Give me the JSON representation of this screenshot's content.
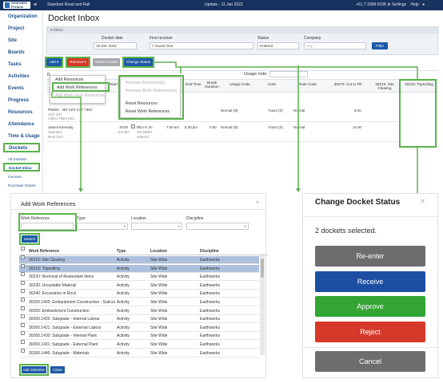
{
  "topbar": {
    "logo": "SYNCHRO Perform",
    "account": "Standard Road and Rail",
    "update": "Update - 11 Jan 2022",
    "phone": "+61 7 3368 0038",
    "settings": "Settings",
    "help": "Help"
  },
  "sidebar": {
    "items": [
      "Organization",
      "Project",
      "Site",
      "Boards",
      "Tasks",
      "Activities",
      "Events",
      "Progress",
      "Resources",
      "Attendance",
      "Time & Usage",
      "Dockets"
    ],
    "subitems": [
      "All Dockets",
      "Docket Inbox",
      "Invoices",
      "Purchase Orders"
    ]
  },
  "page": {
    "title": "Docket Inbox"
  },
  "filters": {
    "header": "Filters",
    "docket_date_label": "Docket date",
    "docket_date": "15 Dec 2021",
    "receiver_label": "First receiver",
    "receiver": "× Guest One",
    "status_label": "Status",
    "status": "Entered",
    "company_label": "Company",
    "company": "Any",
    "filter_btn": "Filter"
  },
  "toolbar": {
    "add": "Add",
    "remove": "Remove",
    "select": "Select Docket",
    "change": "Change Status",
    "usage_note": "Usage note:",
    "r_label": "R"
  },
  "add_menu": {
    "items": [
      "Add Resources",
      "Add Work References",
      "Add Work Hour Resources"
    ]
  },
  "remove_menu": {
    "items": [
      "Remove Resource(s)",
      "Remove Work Reference(s)",
      "",
      "Reset Resources",
      "Reset Work References"
    ]
  },
  "table": {
    "headers": [
      "Docket",
      "Start",
      "End Time",
      "Break Duration",
      "Usage Code",
      "UoM",
      "Rate Code",
      "30270: Cut to Fill",
      "30210: Site Clearing",
      "30210: Topsoiling"
    ],
    "rows": [
      {
        "docket": "PN004 - 30T ADT CAT 730C",
        "sub1": "ADT 30T",
        "sub2": "John's Plant Hire",
        "uom": "hours (h)",
        "usage": "Normal (N)",
        "rate": "Normal",
        "cut": "8.00"
      },
      {
        "docket": "James Kennedy",
        "sub1": "Operator",
        "sub2": "Real Civil",
        "start": "10:00",
        "start2": "(10:00)",
        "ref": "REA-F..IK-",
        "ref2": "20175807",
        "ref3": "entered",
        "end": "7:00 am",
        "brk": "5:30 pm",
        "brk2": "0.50",
        "usage": "Normal (N)",
        "uom": "hours (h)",
        "rate": "Normal",
        "cut": "10.00"
      }
    ]
  },
  "awr": {
    "title": "Add Work References",
    "labels": [
      "Work Reference",
      "Type",
      "Location",
      "Discipline"
    ],
    "search": "Search",
    "cols": [
      "Work Reference",
      "Type",
      "Location",
      "Discipline"
    ],
    "rows": [
      [
        "30110: Site Clearing",
        "Activity",
        "Site Wide",
        "Earthworks"
      ],
      [
        "30210: Topsoiling",
        "Activity",
        "Site Wide",
        "Earthworks"
      ],
      [
        "30220: Removal of Redundant Items",
        "Activity",
        "Site Wide",
        "Earthworks"
      ],
      [
        "30230: Unsuitable Material",
        "Activity",
        "Site Wide",
        "Earthworks"
      ],
      [
        "30240: Excavation in Rock",
        "Activity",
        "Site Wide",
        "Earthworks"
      ],
      [
        "30250.1400: Embankment Construction - Subcontract",
        "Activity",
        "Site Wide",
        "Earthworks"
      ],
      [
        "30250: Embankment Construction",
        "Activity",
        "Site Wide",
        "Earthworks"
      ],
      [
        "30260.1420: Subgrade - Internal Labour",
        "Activity",
        "Site Wide",
        "Earthworks"
      ],
      [
        "30260.1421: Subgrade - External Labour",
        "Activity",
        "Site Wide",
        "Earthworks"
      ],
      [
        "30260.1430: Subgrade - Internal Plant",
        "Activity",
        "Site Wide",
        "Earthworks"
      ],
      [
        "30260.1431: Subgrade - External Plant",
        "Activity",
        "Site Wide",
        "Earthworks"
      ],
      [
        "30260.1440: Subgrade - Materials",
        "Activity",
        "Site Wide",
        "Earthworks"
      ]
    ],
    "add_selection": "Add Selection",
    "close": "Close"
  },
  "cds": {
    "title": "Change Docket Status",
    "message": "2 dockets selected.",
    "buttons": [
      "Re-enter",
      "Receive",
      "Approve",
      "Reject",
      "Cancel"
    ],
    "close": "×"
  },
  "colors": {
    "navy": "#17325e",
    "blue": "#1c5aa6",
    "red": "#d6382a",
    "green": "#3aa83a",
    "gray": "#6d6d6d",
    "highlight": "#5ab34a"
  }
}
